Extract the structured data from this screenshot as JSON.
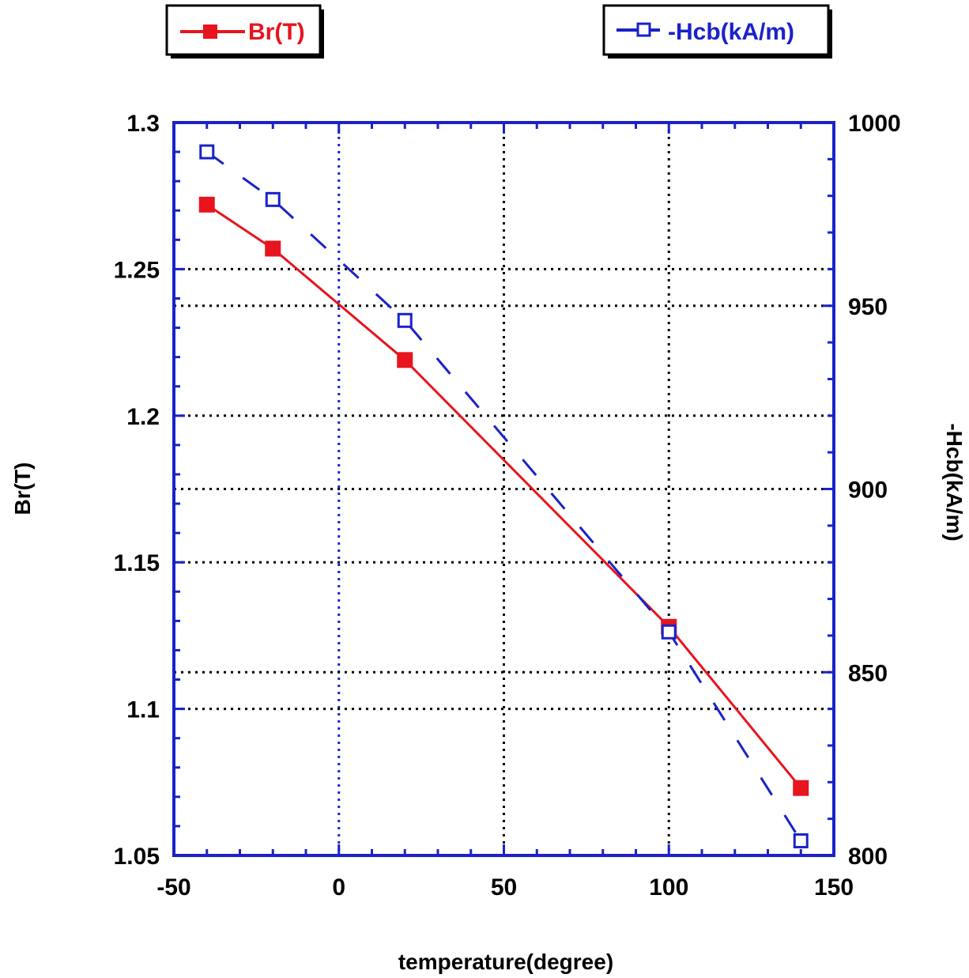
{
  "chart_data": {
    "type": "line",
    "title": "",
    "xlabel": "temperature(degree)",
    "ylabel_left": "Br(T)",
    "ylabel_right": "-Hcb(kA/m)",
    "xlim": [
      -50,
      150
    ],
    "xticks": [
      -50,
      0,
      50,
      100,
      150
    ],
    "ylim_left": [
      1.05,
      1.3
    ],
    "yticks_left": [
      1.05,
      1.1,
      1.15,
      1.2,
      1.25,
      1.3
    ],
    "ylim_right": [
      800,
      1000
    ],
    "yticks_right": [
      800,
      850,
      900,
      950,
      1000
    ],
    "grid": true,
    "series": [
      {
        "name": "Br(T)",
        "axis": "left",
        "color": "#e8141e",
        "marker": "filled-square",
        "x": [
          -40,
          -20,
          20,
          100,
          140
        ],
        "values": [
          1.272,
          1.257,
          1.219,
          1.128,
          1.073
        ]
      },
      {
        "name": "-Hcb(kA/m)",
        "axis": "right",
        "color": "#1a22c8",
        "marker": "open-square",
        "x": [
          -40,
          -20,
          20,
          100,
          140
        ],
        "values": [
          992,
          979,
          946,
          861,
          804
        ]
      }
    ],
    "legend": {
      "placement": "top",
      "entries": [
        "Br(T)",
        "-Hcb(kA/m)"
      ]
    }
  }
}
